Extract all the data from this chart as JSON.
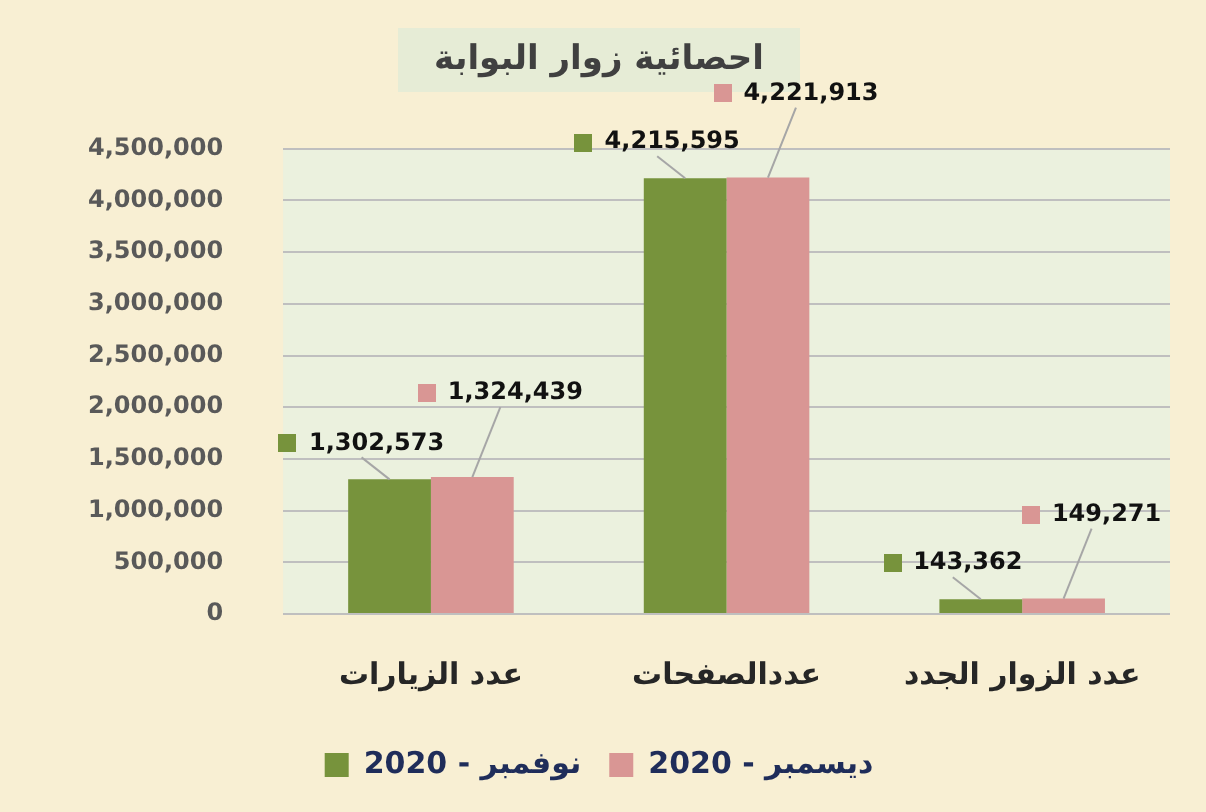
{
  "chart_data": {
    "type": "bar",
    "title": "احصائية زوار البوابة",
    "categories": [
      "عدد الزيارات",
      "عددالصفحات",
      "عدد الزوار الجدد"
    ],
    "series": [
      {
        "name": "نوفمبر - 2020",
        "color": "#77933c",
        "values": [
          1302573,
          4215595,
          143362
        ],
        "value_labels": [
          "1,302,573",
          "4,215,595",
          "143,362"
        ]
      },
      {
        "name": "ديسمبر - 2020",
        "color": "#d99694",
        "values": [
          1324439,
          4221913,
          149271
        ],
        "value_labels": [
          "1,324,439",
          "4,221,913",
          "149,271"
        ]
      }
    ],
    "ylim": [
      0,
      4500000
    ],
    "yticks": [
      0,
      {
        "value": 500000,
        "label": "500,000"
      },
      {
        "value": 1000000,
        "label": "1,000,000"
      },
      {
        "value": 1500000,
        "label": "1,500,000"
      },
      {
        "value": 2000000,
        "label": "2,000,000"
      },
      {
        "value": 2500000,
        "label": "2,500,000"
      },
      {
        "value": 3000000,
        "label": "3,000,000"
      },
      {
        "value": 3500000,
        "label": "3,500,000"
      },
      {
        "value": 4000000,
        "label": "4,000,000"
      },
      {
        "value": 4500000,
        "label": "4,500,000"
      }
    ],
    "grid": "y",
    "legend": "bottom"
  }
}
